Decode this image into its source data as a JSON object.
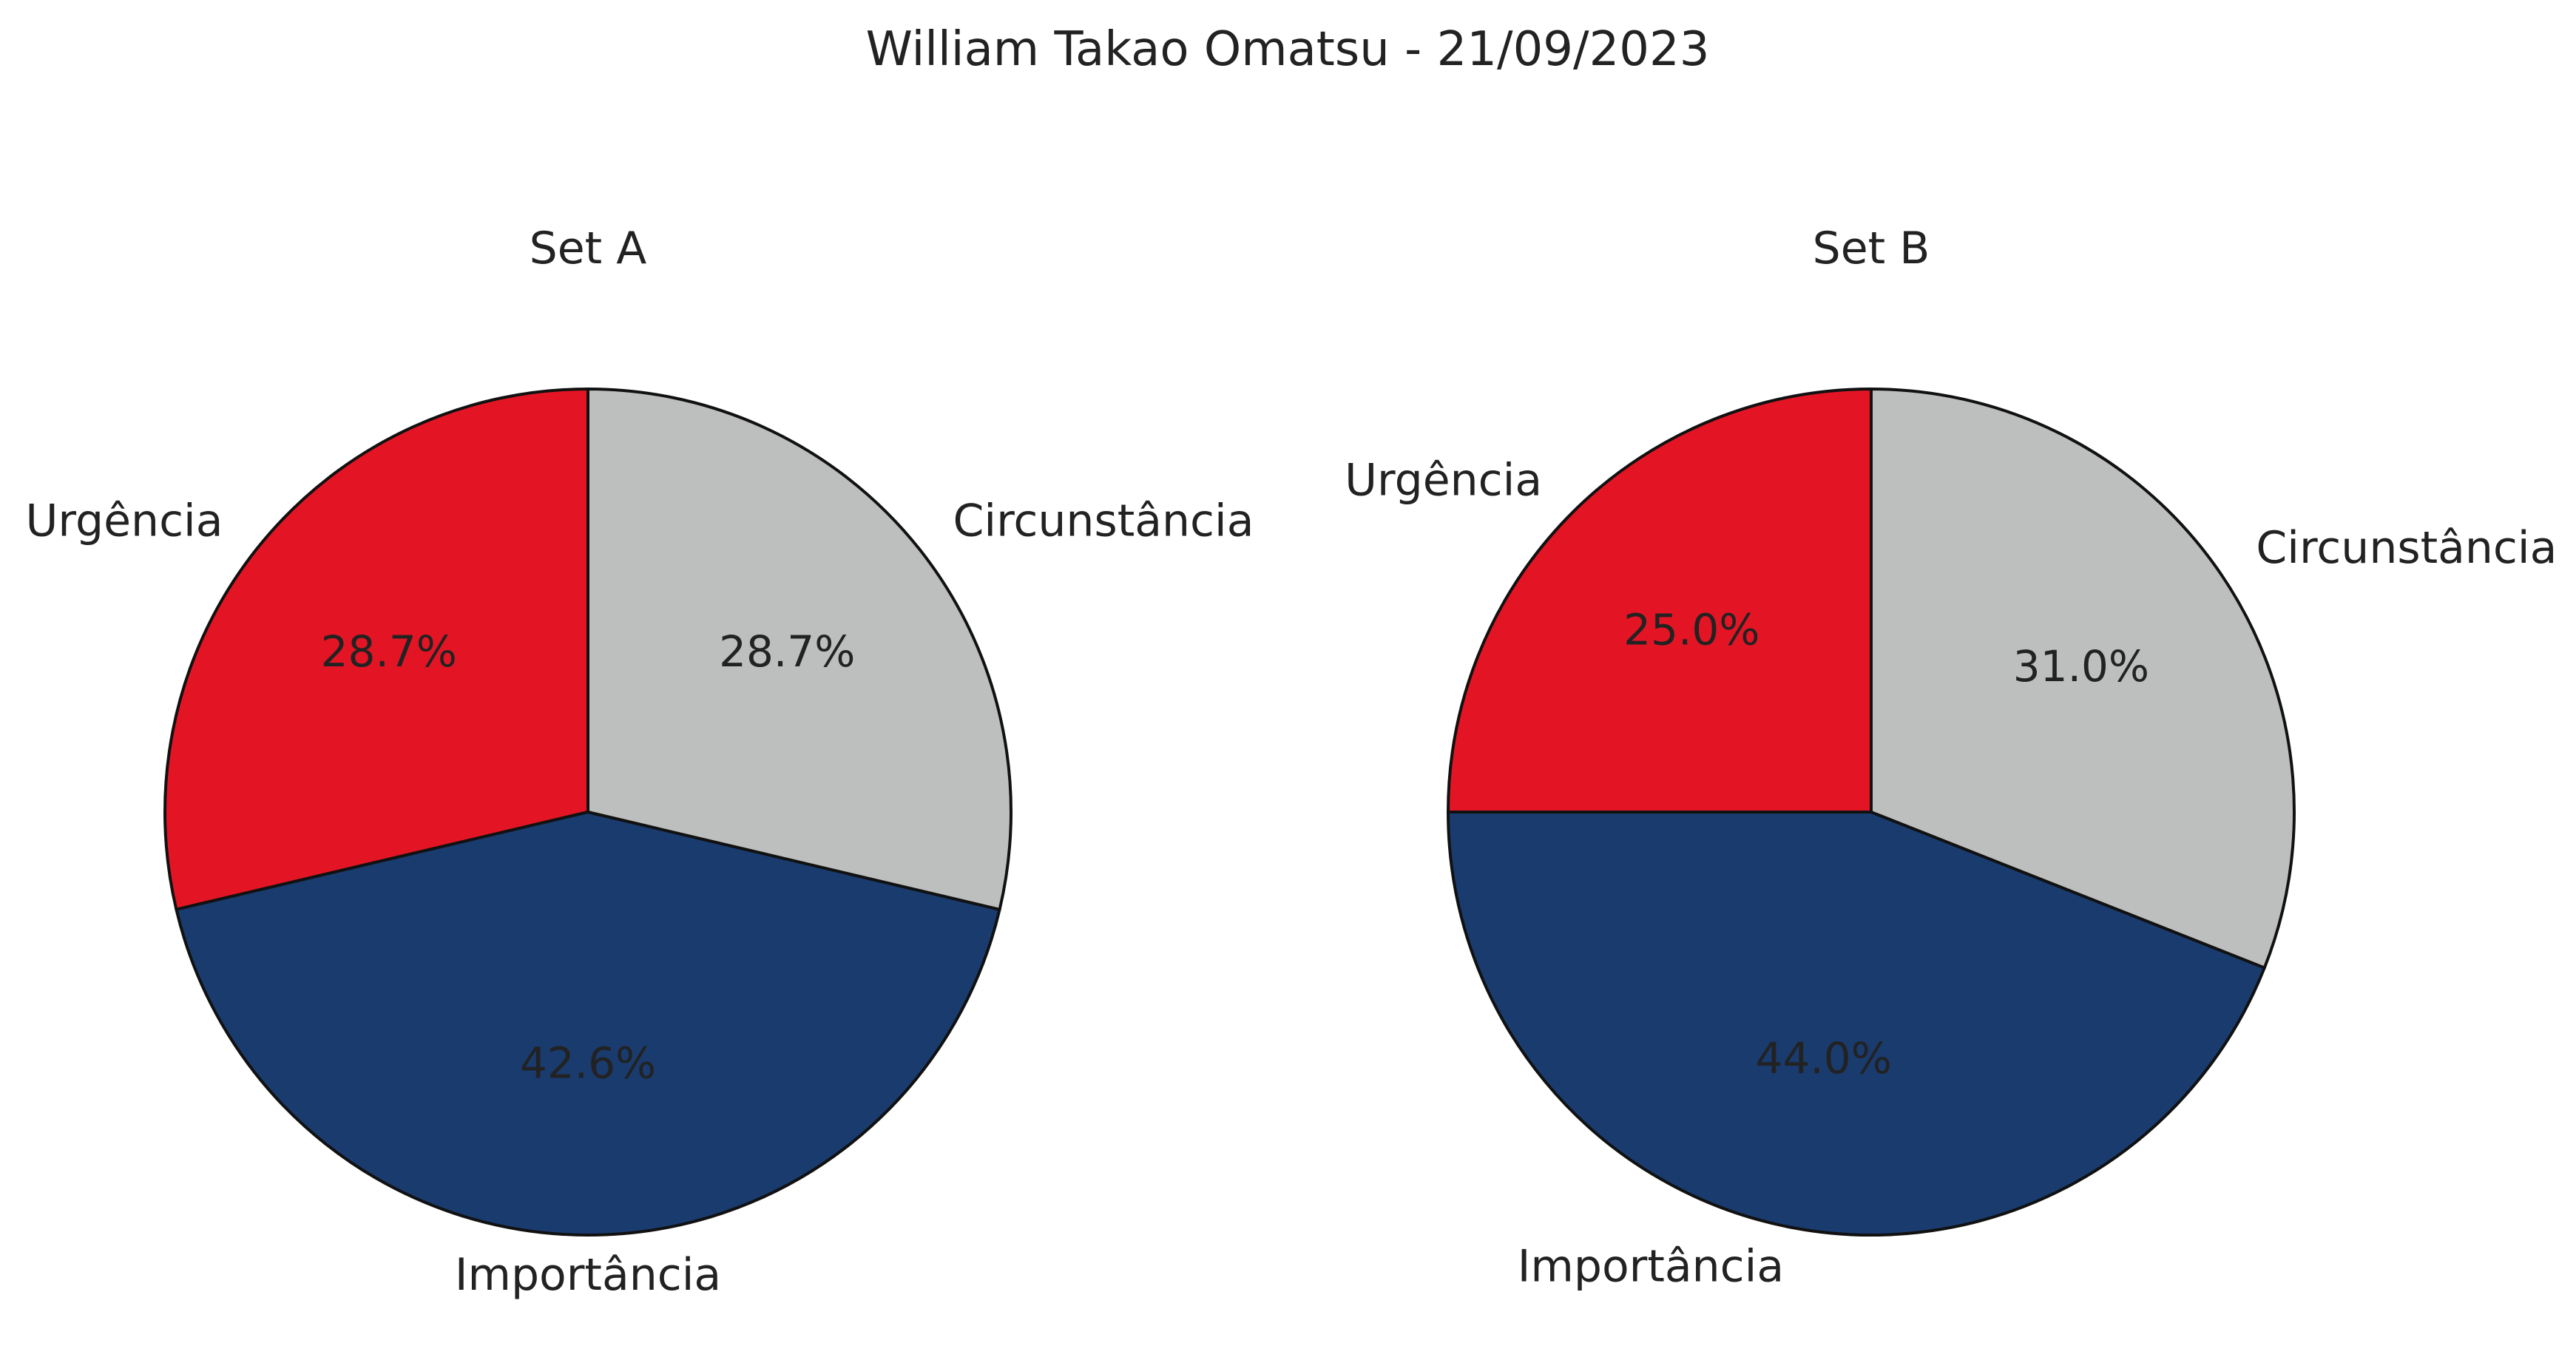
{
  "title": "William Takao Omatsu - 21/09/2023",
  "colors": {
    "Urgência": "#e31525",
    "Circunstância": "#bdbfbe",
    "Importância": "#193b6e",
    "outline": "#111111",
    "text": "#222222"
  },
  "chart_data": [
    {
      "type": "pie",
      "title": "Set A",
      "start_angle_deg": 90,
      "direction": "counterclockwise",
      "labels": [
        "Urgência",
        "Importância",
        "Circunstância"
      ],
      "values": [
        28.7,
        42.6,
        28.7
      ],
      "value_labels": [
        "28.7%",
        "42.6%",
        "28.7%"
      ]
    },
    {
      "type": "pie",
      "title": "Set B",
      "start_angle_deg": 90,
      "direction": "counterclockwise",
      "labels": [
        "Urgência",
        "Importância",
        "Circunstância"
      ],
      "values": [
        25.0,
        44.0,
        31.0
      ],
      "value_labels": [
        "25.0%",
        "44.0%",
        "31.0%"
      ]
    }
  ]
}
